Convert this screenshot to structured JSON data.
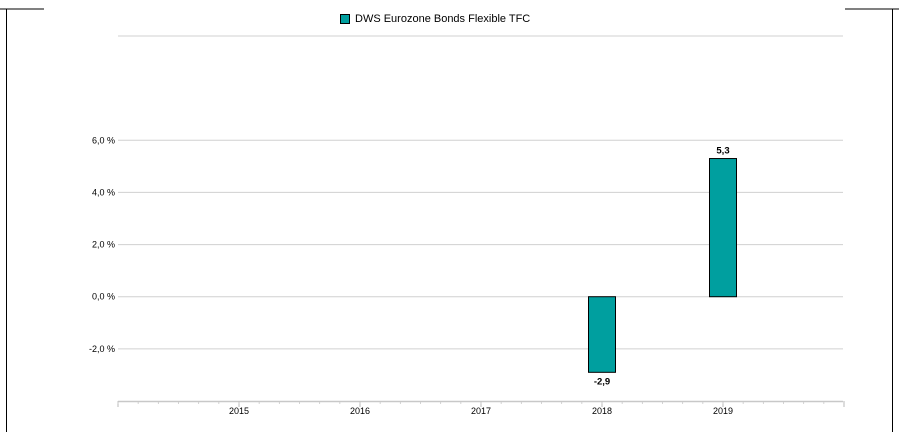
{
  "chart_data": {
    "type": "bar",
    "categories": [
      "2015",
      "2016",
      "2017",
      "2018",
      "2019"
    ],
    "series": [
      {
        "name": "DWS Eurozone Bonds Flexible  TFC",
        "values": [
          null,
          null,
          null,
          -2.9,
          5.3
        ],
        "color": "#009f9f"
      }
    ],
    "data_labels": [
      "",
      "",
      "",
      "-2,9",
      "5,3"
    ],
    "ylim": [
      -4,
      10
    ],
    "y_ticks": [
      {
        "value": -2,
        "label": "-2,0 %"
      },
      {
        "value": 0,
        "label": "0,0 %"
      },
      {
        "value": 2,
        "label": "2,0 %"
      },
      {
        "value": 4,
        "label": "4,0 %"
      },
      {
        "value": 6,
        "label": "6,0 %"
      }
    ],
    "grid": true,
    "legend_position": "top"
  }
}
